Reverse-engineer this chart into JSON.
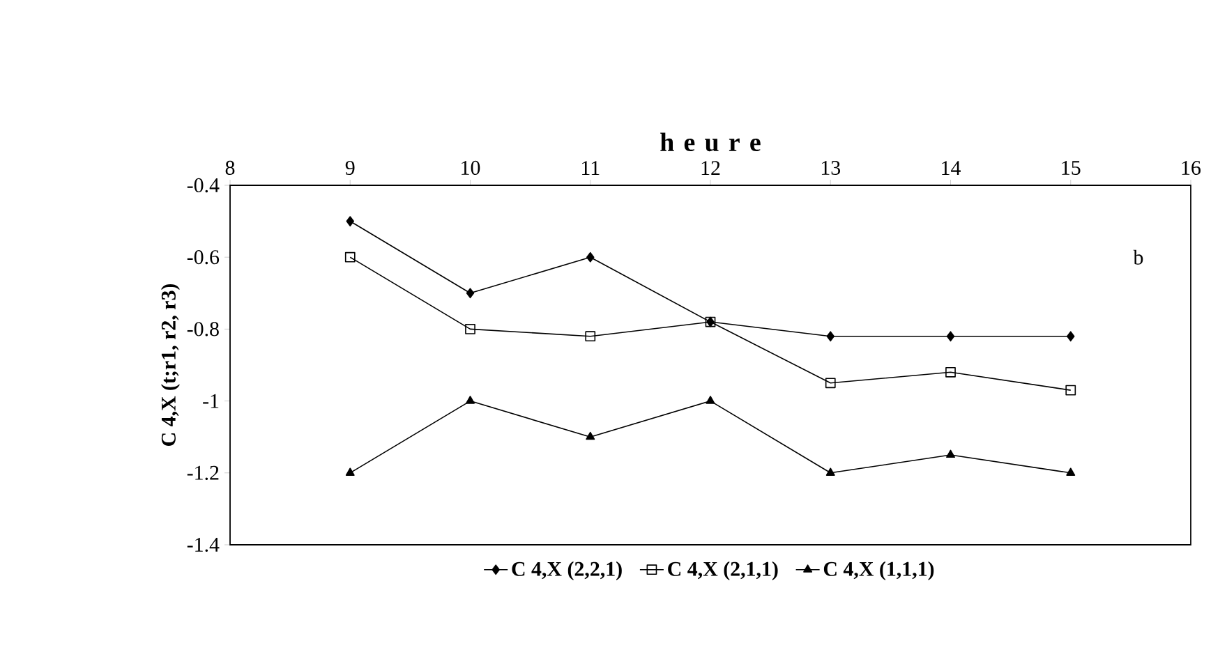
{
  "chart_data": {
    "type": "line",
    "xlabel": "h e u r e",
    "ylabel": "C 4,X (t;r1, r2, r3)",
    "x": [
      9,
      10,
      11,
      12,
      13,
      14,
      15
    ],
    "xlim": [
      8,
      16
    ],
    "xticks": [
      8,
      9,
      10,
      11,
      12,
      13,
      14,
      15,
      16
    ],
    "ylim": [
      -1.4,
      -0.4
    ],
    "yticks": [
      -1.4,
      -1.2,
      -1,
      -0.8,
      -0.6,
      -0.4
    ],
    "series": [
      {
        "name": "C 4,X (2,2,1)",
        "color": "#000000",
        "marker": "diamond",
        "values": [
          -0.5,
          -0.7,
          -0.6,
          -0.78,
          -0.82,
          -0.82,
          -0.82
        ]
      },
      {
        "name": "C 4,X (2,1,1)",
        "color": "#000000",
        "marker": "square",
        "values": [
          -0.6,
          -0.8,
          -0.82,
          -0.78,
          -0.95,
          -0.92,
          -0.97
        ]
      },
      {
        "name": "C 4,X (1,1,1)",
        "color": "#000000",
        "marker": "triangle",
        "values": [
          -1.2,
          -1,
          -1.1,
          -1,
          -1.2,
          -1.15,
          -1.2
        ]
      }
    ],
    "annotations": [
      "b"
    ],
    "legend": "bottom",
    "grid": false,
    "line_style": "solid"
  }
}
